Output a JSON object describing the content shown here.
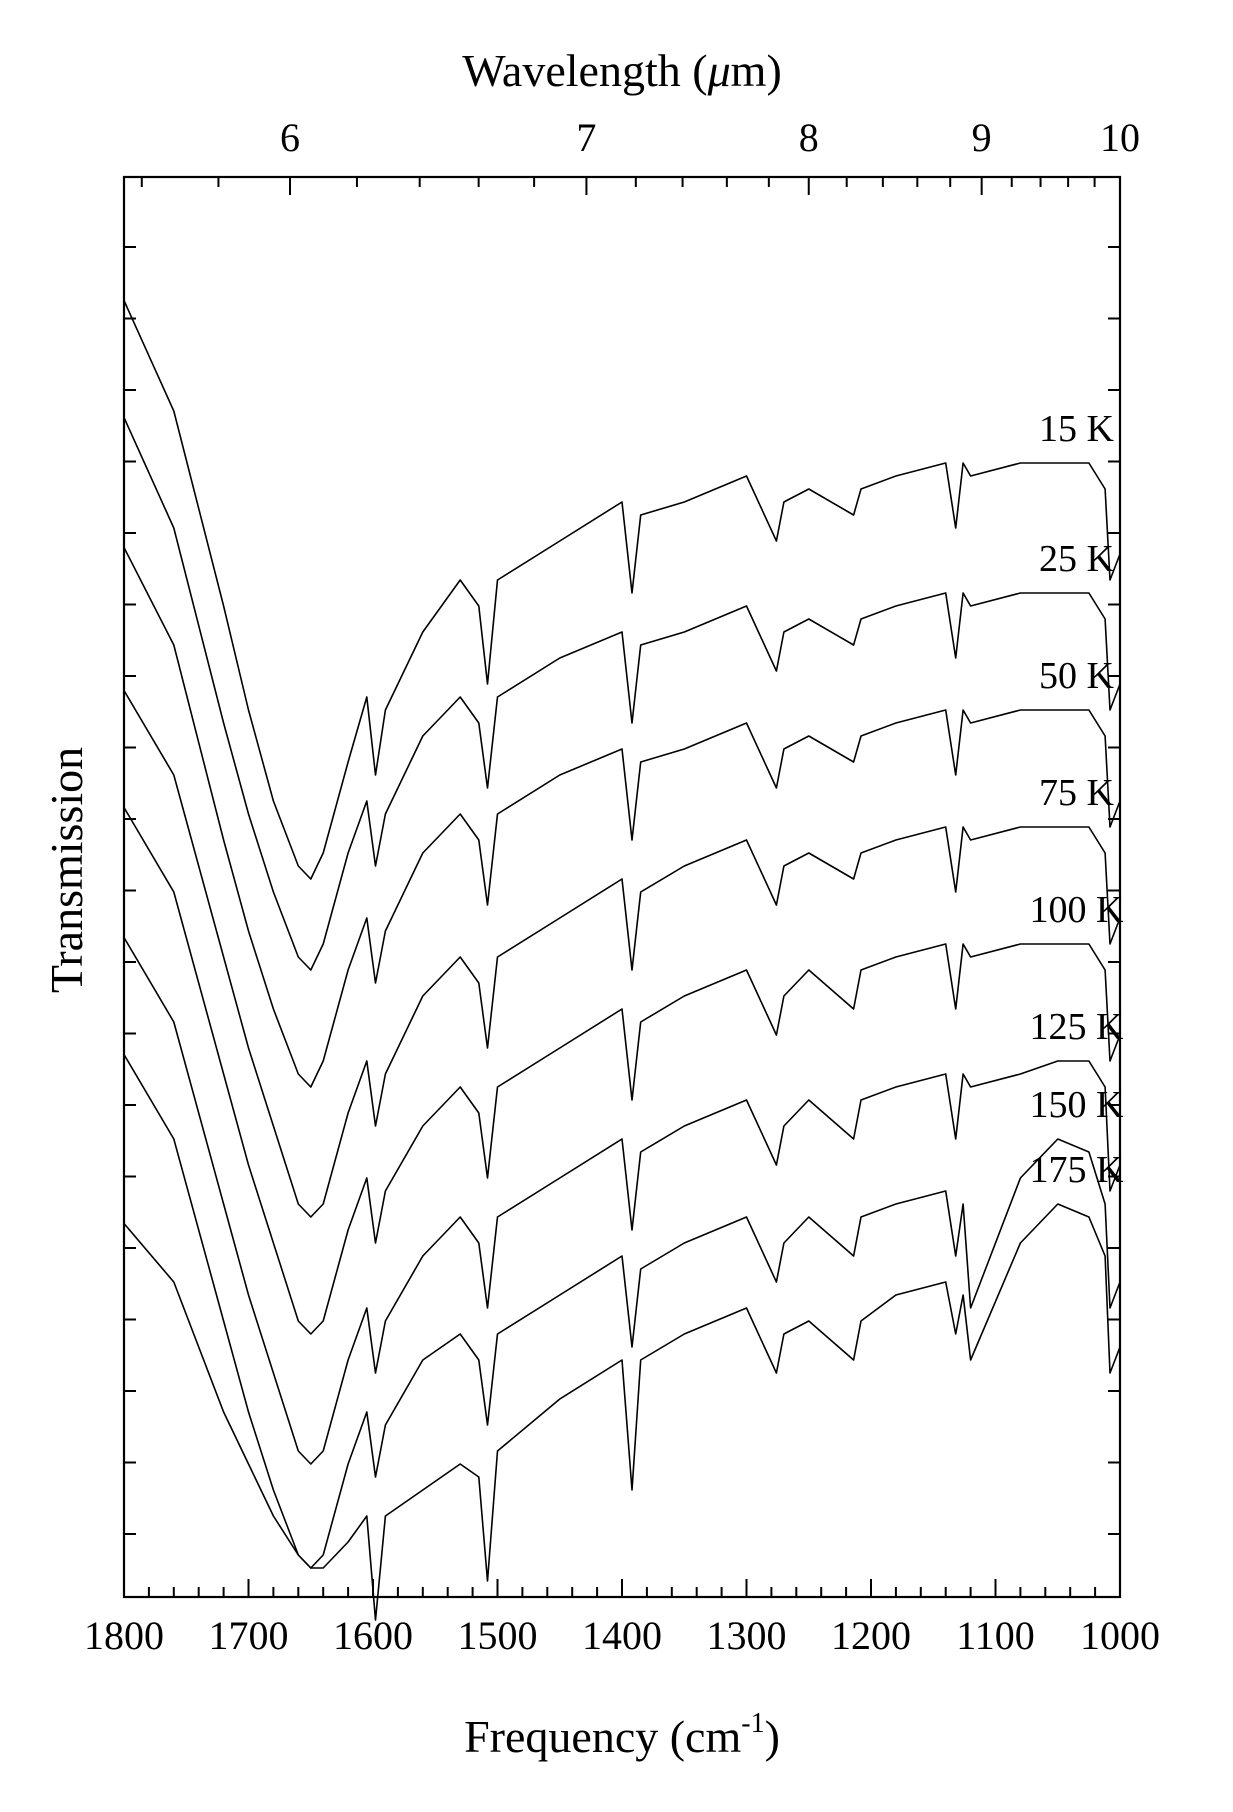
{
  "chart_data": {
    "type": "line",
    "xlabel": "Frequency (cm",
    "xlabel_sup": "-1",
    "xlabel_suffix": ")",
    "x2label": "Wavelength (",
    "x2label_mu": "μ",
    "x2label_suffix": "m)",
    "ylabel": "Transmission",
    "xlim": [
      1800,
      1000
    ],
    "x_ticks": [
      "1800",
      "1700",
      "1600",
      "1500",
      "1400",
      "1300",
      "1200",
      "1100",
      "1000"
    ],
    "x2_ticks": [
      "6",
      "7",
      "8",
      "9",
      "10"
    ],
    "x2_tick_values_um": [
      6,
      7,
      8,
      9,
      10
    ],
    "x2_minor_ticks_um": [
      5.6,
      5.8,
      6.2,
      6.4,
      6.6,
      6.8,
      7.2,
      7.4,
      7.6,
      7.8,
      8.2,
      8.4,
      8.6,
      8.8,
      9.2,
      9.4,
      9.6,
      9.8
    ],
    "y_ticks_shown_without_labels": true,
    "grid": false,
    "x_sampled": [
      1800,
      1760,
      1720,
      1700,
      1680,
      1660,
      1650,
      1640,
      1620,
      1605,
      1598,
      1590,
      1560,
      1530,
      1515,
      1508,
      1500,
      1450,
      1400,
      1392,
      1385,
      1350,
      1300,
      1276,
      1270,
      1250,
      1214,
      1208,
      1180,
      1140,
      1132,
      1126,
      1120,
      1080,
      1050,
      1025,
      1012,
      1008,
      1000
    ],
    "series": [
      {
        "name": "15 K",
        "values": [
          0.915,
          0.83,
          0.68,
          0.6,
          0.53,
          0.48,
          0.47,
          0.49,
          0.56,
          0.61,
          0.55,
          0.6,
          0.66,
          0.7,
          0.68,
          0.62,
          0.7,
          0.73,
          0.76,
          0.69,
          0.75,
          0.76,
          0.78,
          0.73,
          0.76,
          0.77,
          0.75,
          0.77,
          0.78,
          0.79,
          0.74,
          0.79,
          0.78,
          0.79,
          0.79,
          0.79,
          0.77,
          0.7,
          0.72
        ]
      },
      {
        "name": "25 K",
        "values": [
          0.825,
          0.74,
          0.59,
          0.52,
          0.46,
          0.41,
          0.4,
          0.42,
          0.49,
          0.53,
          0.48,
          0.52,
          0.58,
          0.61,
          0.59,
          0.54,
          0.61,
          0.64,
          0.66,
          0.59,
          0.65,
          0.66,
          0.68,
          0.63,
          0.66,
          0.67,
          0.65,
          0.67,
          0.68,
          0.69,
          0.64,
          0.69,
          0.68,
          0.69,
          0.69,
          0.69,
          0.67,
          0.6,
          0.62
        ]
      },
      {
        "name": "50 K",
        "values": [
          0.725,
          0.65,
          0.5,
          0.43,
          0.37,
          0.32,
          0.31,
          0.33,
          0.4,
          0.44,
          0.39,
          0.43,
          0.49,
          0.52,
          0.5,
          0.45,
          0.52,
          0.55,
          0.57,
          0.5,
          0.56,
          0.57,
          0.59,
          0.54,
          0.57,
          0.58,
          0.56,
          0.58,
          0.59,
          0.6,
          0.55,
          0.6,
          0.59,
          0.6,
          0.6,
          0.6,
          0.58,
          0.51,
          0.53
        ]
      },
      {
        "name": "75 K",
        "values": [
          0.615,
          0.55,
          0.41,
          0.34,
          0.28,
          0.22,
          0.21,
          0.22,
          0.29,
          0.33,
          0.28,
          0.32,
          0.38,
          0.41,
          0.39,
          0.34,
          0.41,
          0.44,
          0.47,
          0.4,
          0.46,
          0.48,
          0.5,
          0.45,
          0.48,
          0.49,
          0.47,
          0.49,
          0.5,
          0.51,
          0.46,
          0.51,
          0.5,
          0.51,
          0.51,
          0.51,
          0.49,
          0.42,
          0.44
        ]
      },
      {
        "name": "100 K",
        "values": [
          0.525,
          0.46,
          0.32,
          0.25,
          0.19,
          0.13,
          0.12,
          0.13,
          0.2,
          0.24,
          0.19,
          0.23,
          0.28,
          0.31,
          0.29,
          0.24,
          0.31,
          0.34,
          0.37,
          0.3,
          0.36,
          0.38,
          0.4,
          0.35,
          0.38,
          0.4,
          0.37,
          0.4,
          0.41,
          0.42,
          0.37,
          0.42,
          0.41,
          0.42,
          0.42,
          0.42,
          0.4,
          0.33,
          0.35
        ]
      },
      {
        "name": "125 K",
        "values": [
          0.425,
          0.36,
          0.22,
          0.15,
          0.09,
          0.03,
          0.02,
          0.03,
          0.1,
          0.14,
          0.09,
          0.13,
          0.18,
          0.21,
          0.19,
          0.14,
          0.21,
          0.24,
          0.27,
          0.2,
          0.26,
          0.28,
          0.3,
          0.25,
          0.28,
          0.3,
          0.27,
          0.3,
          0.31,
          0.32,
          0.27,
          0.32,
          0.31,
          0.32,
          0.33,
          0.33,
          0.31,
          0.23,
          0.25
        ]
      },
      {
        "name": "150 K",
        "values": [
          0.335,
          0.27,
          0.13,
          0.06,
          0.0,
          -0.05,
          -0.06,
          -0.05,
          0.02,
          0.06,
          0.01,
          0.05,
          0.1,
          0.12,
          0.1,
          0.05,
          0.12,
          0.15,
          0.18,
          0.11,
          0.17,
          0.19,
          0.21,
          0.16,
          0.19,
          0.21,
          0.18,
          0.21,
          0.22,
          0.23,
          0.18,
          0.22,
          0.14,
          0.24,
          0.27,
          0.26,
          0.22,
          0.14,
          0.16
        ]
      },
      {
        "name": "175 K",
        "values": [
          0.205,
          0.16,
          0.06,
          0.02,
          -0.02,
          -0.05,
          -0.06,
          -0.06,
          -0.04,
          -0.02,
          -0.1,
          -0.02,
          0.0,
          0.02,
          0.01,
          -0.07,
          0.03,
          0.07,
          0.1,
          0.0,
          0.1,
          0.12,
          0.14,
          0.09,
          0.12,
          0.13,
          0.1,
          0.13,
          0.15,
          0.16,
          0.12,
          0.15,
          0.1,
          0.19,
          0.22,
          0.21,
          0.18,
          0.09,
          0.11
        ]
      }
    ]
  }
}
